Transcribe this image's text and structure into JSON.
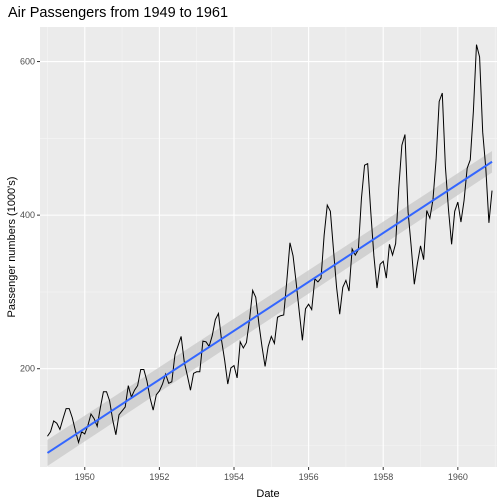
{
  "chart_data": {
    "type": "line",
    "title": "Air Passengers from 1949 to 1961",
    "xlabel": "Date",
    "ylabel": "Passenger numbers (1000's)",
    "xlim": [
      1948.8,
      1961.05
    ],
    "ylim": [
      72,
      645
    ],
    "x_ticks": [
      1950,
      1952,
      1954,
      1956,
      1958,
      1960
    ],
    "y_ticks": [
      200,
      400,
      600
    ],
    "grid": true,
    "legend": "none",
    "colors": {
      "panel_background": "#ebebeb",
      "grid_major": "#ffffff",
      "grid_minor": "#f5f5f5",
      "series_line": "#000000",
      "trend_line": "#3366ff",
      "confidence_band": "#c8c8c8"
    },
    "series": [
      {
        "x_start": 1949.0,
        "x_step": 0.0833333,
        "values": [
          112,
          118,
          132,
          129,
          121,
          135,
          148,
          148,
          136,
          119,
          104,
          118,
          115,
          126,
          141,
          135,
          125,
          149,
          170,
          170,
          158,
          133,
          114,
          140,
          145,
          150,
          178,
          163,
          172,
          178,
          199,
          199,
          184,
          162,
          146,
          166,
          171,
          180,
          193,
          181,
          183,
          218,
          230,
          242,
          209,
          191,
          172,
          194,
          196,
          196,
          236,
          235,
          229,
          243,
          264,
          272,
          237,
          211,
          180,
          201,
          204,
          188,
          235,
          227,
          234,
          264,
          302,
          293,
          259,
          229,
          203,
          229,
          242,
          233,
          267,
          269,
          270,
          315,
          364,
          347,
          312,
          274,
          237,
          278,
          284,
          277,
          317,
          313,
          318,
          374,
          413,
          405,
          355,
          306,
          271,
          306,
          315,
          301,
          356,
          348,
          355,
          422,
          465,
          467,
          404,
          347,
          305,
          336,
          340,
          318,
          362,
          348,
          363,
          435,
          491,
          505,
          404,
          359,
          310,
          337,
          360,
          342,
          406,
          396,
          420,
          472,
          548,
          559,
          463,
          407,
          362,
          405,
          417,
          391,
          419,
          461,
          472,
          535,
          622,
          606,
          508,
          461,
          390,
          432
        ]
      }
    ],
    "trend": {
      "method": "linear",
      "x": [
        1949.0,
        1960.917
      ],
      "y": [
        90.3,
        469.5
      ],
      "band_halfwidth": [
        17,
        14
      ]
    }
  }
}
